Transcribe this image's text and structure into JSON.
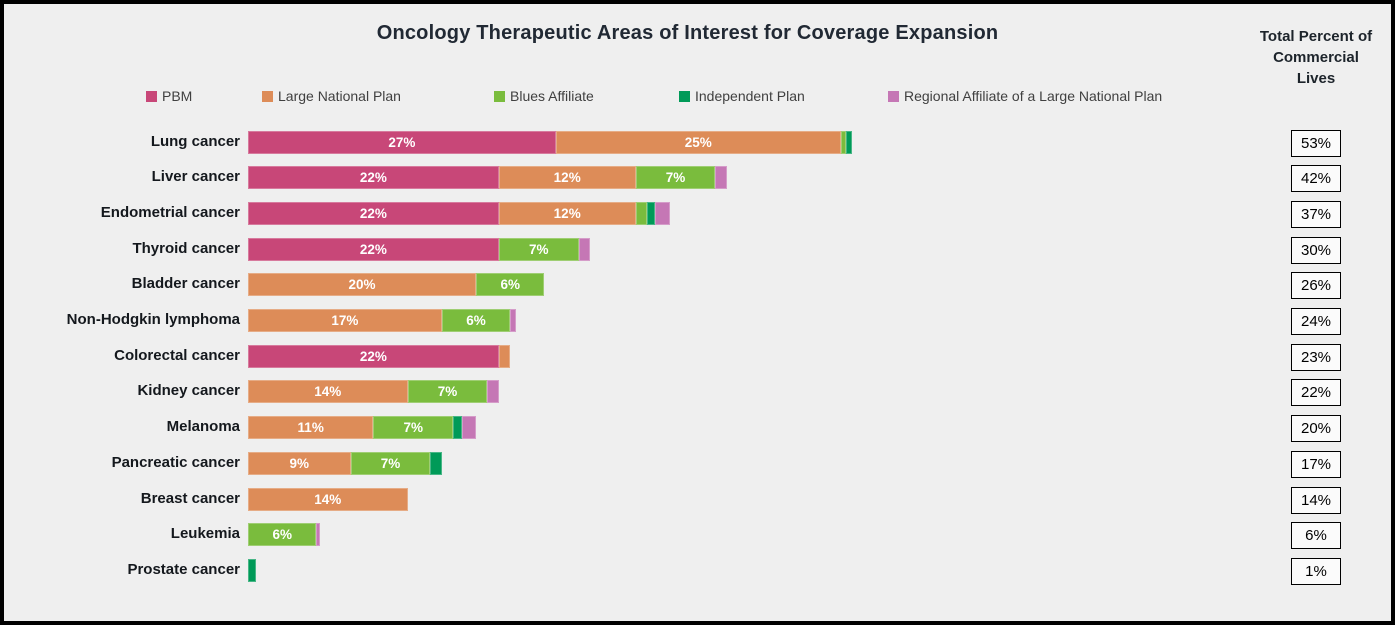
{
  "title": "Oncology Therapeutic Areas of Interest for Coverage Expansion",
  "totals_header": "Total Percent of Commercial Lives",
  "colors": {
    "background": "#EFEFEF",
    "frame_border": "#000000",
    "title_text": "#212934",
    "category_label_text": "#14181D",
    "segment_label_text": "#FFFFFF",
    "total_box_background": "#FBFBFB",
    "total_box_border": "#000000",
    "pbm": "#C84778",
    "large_national_plan": "#DD8C58",
    "blues_affiliate": "#7ABC3D",
    "independent_plan": "#009A58",
    "regional_affiliate": "#C577B5"
  },
  "chart_data": {
    "type": "bar",
    "orientation": "horizontal",
    "stacked": true,
    "unit": "%",
    "title": "Oncology Therapeutic Areas of Interest for Coverage Expansion",
    "legend_position": "top",
    "grid": false,
    "axes_hidden": true,
    "xlim": [
      0,
      57
    ],
    "label_threshold": 6,
    "categories": [
      "Lung cancer",
      "Liver cancer",
      "Endometrial cancer",
      "Thyroid cancer",
      "Bladder cancer",
      "Non-Hodgkin lymphoma",
      "Colorectal cancer",
      "Kidney cancer",
      "Melanoma",
      "Pancreatic cancer",
      "Breast cancer",
      "Leukemia",
      "Prostate cancer"
    ],
    "series": [
      {
        "name": "PBM",
        "color": "#C84778",
        "values": [
          27,
          22,
          22,
          22,
          0,
          0,
          22,
          0,
          0,
          0,
          0,
          0,
          0
        ]
      },
      {
        "name": "Large National Plan",
        "color": "#DD8C58",
        "values": [
          25,
          12,
          12,
          0,
          20,
          17,
          1,
          14,
          11,
          9,
          14,
          0,
          0
        ]
      },
      {
        "name": "Blues Affiliate",
        "color": "#7ABC3D",
        "values": [
          0.5,
          7,
          1,
          7,
          6,
          6,
          0,
          7,
          7,
          7,
          0,
          6,
          0
        ]
      },
      {
        "name": "Independent Plan",
        "color": "#009A58",
        "values": [
          0.5,
          0,
          0.7,
          0,
          0,
          0,
          0,
          0,
          0.8,
          1,
          0,
          0,
          0.7
        ]
      },
      {
        "name": "Regional Affiliate of a Large National Plan",
        "color": "#C577B5",
        "values": [
          0,
          1,
          1.3,
          1,
          0,
          0.5,
          0,
          1,
          1.2,
          0,
          0,
          0.3,
          0
        ]
      }
    ],
    "totals": [
      "53%",
      "42%",
      "37%",
      "30%",
      "26%",
      "24%",
      "23%",
      "22%",
      "20%",
      "17%",
      "14%",
      "6%",
      "1%"
    ]
  }
}
